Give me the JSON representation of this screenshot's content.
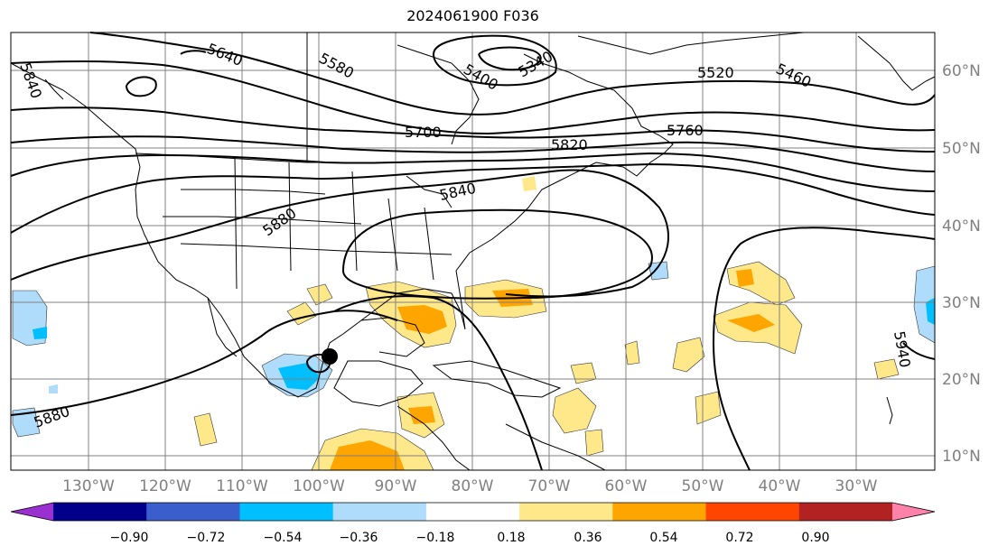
{
  "title": "2024061900 F036",
  "map": {
    "lat_labels": [
      "60°N",
      "50°N",
      "40°N",
      "30°N",
      "20°N",
      "10°N"
    ],
    "lon_labels": [
      "130°W",
      "120°W",
      "110°W",
      "100°W",
      "90°W",
      "80°W",
      "70°W",
      "60°W",
      "50°W",
      "40°W",
      "30°W"
    ],
    "contour_labels": [
      "5640",
      "5580",
      "5400",
      "5340",
      "5520",
      "5460",
      "5700",
      "5760",
      "5820",
      "5840",
      "5880",
      "5880",
      "5940",
      "5840"
    ],
    "storm_marker": "storm-center",
    "coastline_color": "#000000",
    "grid_color": "#808080"
  },
  "colorbar": {
    "ticks": [
      "−0.90",
      "−0.72",
      "−0.54",
      "−0.36",
      "−0.18",
      "0.18",
      "0.36",
      "0.54",
      "0.72",
      "0.90"
    ],
    "colors": [
      "#9b30d0",
      "#00008b",
      "#3a5fcd",
      "#00bfff",
      "#afdcfa",
      "#ffffff",
      "#ffe88a",
      "#ffa500",
      "#ff4500",
      "#b22222",
      "#ff82ab"
    ]
  }
}
